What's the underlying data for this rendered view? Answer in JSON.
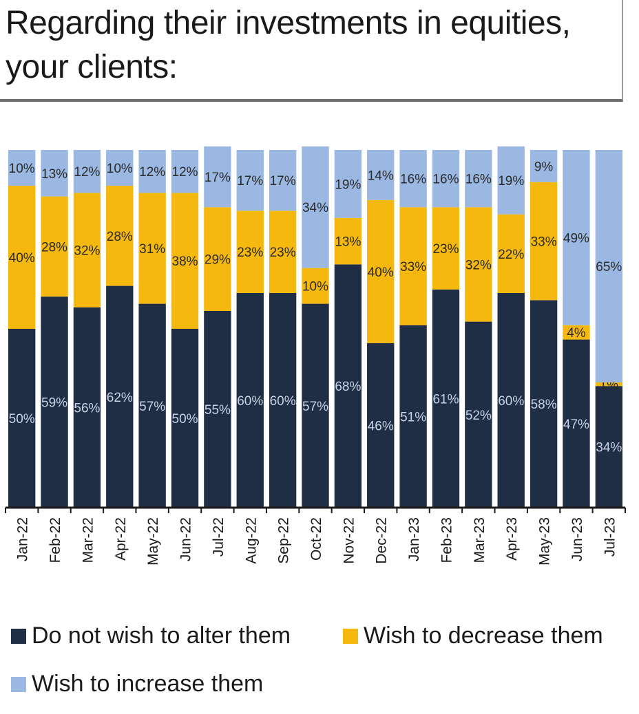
{
  "title": "Regarding their investments in equities, your clients:",
  "colors": {
    "no_change": "#1f2d45",
    "decrease": "#f4b80f",
    "increase": "#9ab8e2"
  },
  "chart_data": {
    "type": "bar",
    "stacked": true,
    "title": "Regarding their investments in equities, your clients:",
    "xlabel": "",
    "ylabel": "",
    "ylim": [
      0,
      100
    ],
    "grid": false,
    "legend_position": "bottom",
    "categories": [
      "Jan-22",
      "Feb-22",
      "Mar-22",
      "Apr-22",
      "May-22",
      "Jun-22",
      "Jul-22",
      "Aug-22",
      "Sep-22",
      "Oct-22",
      "Nov-22",
      "Dec-22",
      "Jan-23",
      "Feb-23",
      "Mar-23",
      "Apr-23",
      "May-23",
      "Jun-23",
      "Jul-23"
    ],
    "series": [
      {
        "name": "Do not wish to alter them",
        "color": "#1f2d45",
        "values": [
          50,
          59,
          56,
          62,
          57,
          50,
          55,
          60,
          60,
          57,
          68,
          46,
          51,
          61,
          52,
          60,
          58,
          47,
          34
        ]
      },
      {
        "name": "Wish to decrease them",
        "color": "#f4b80f",
        "values": [
          40,
          28,
          32,
          28,
          31,
          38,
          29,
          23,
          23,
          10,
          13,
          40,
          33,
          23,
          32,
          22,
          33,
          4,
          1
        ]
      },
      {
        "name": "Wish to increase them",
        "color": "#9ab8e2",
        "values": [
          10,
          13,
          12,
          10,
          12,
          12,
          17,
          17,
          17,
          34,
          19,
          14,
          16,
          16,
          16,
          19,
          9,
          49,
          65
        ]
      }
    ],
    "data_label_suffix": "%"
  },
  "legend": [
    {
      "label": "Do not wish to alter them",
      "color": "#1f2d45"
    },
    {
      "label": "Wish to decrease them",
      "color": "#f4b80f"
    },
    {
      "label": "Wish to increase them",
      "color": "#9ab8e2"
    }
  ]
}
